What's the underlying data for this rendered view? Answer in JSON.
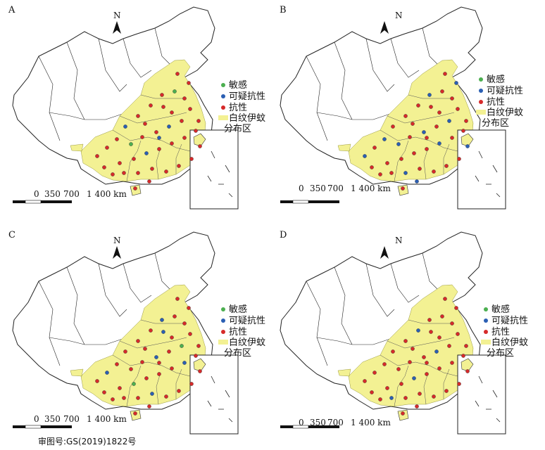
{
  "panels": [
    {
      "label": "A",
      "legend": [
        "敏感",
        "可疑抗性",
        "抗性",
        "白纹伊蚊",
        "分布区"
      ],
      "scale_ticks": [
        "0",
        "350",
        "700",
        "1 400 km"
      ],
      "north": "N",
      "site_pattern": [
        0,
        2,
        2,
        1,
        2,
        2,
        2,
        0,
        2,
        2,
        2,
        1,
        2,
        2,
        2,
        2,
        2,
        2,
        1,
        2,
        2,
        2,
        2,
        2,
        2,
        2,
        2,
        2,
        2,
        2,
        2,
        2,
        1,
        2,
        2,
        2,
        2,
        2,
        2,
        2
      ]
    },
    {
      "label": "B",
      "legend": [
        "敏感",
        "可疑抗性",
        "抗性",
        "白纹伊蚊",
        "分布区"
      ],
      "scale_ticks": [
        "0",
        "350",
        "700",
        "1 400 km"
      ],
      "north": "N",
      "site_pattern": [
        1,
        2,
        1,
        2,
        1,
        2,
        2,
        2,
        1,
        2,
        2,
        2,
        1,
        2,
        1,
        2,
        2,
        2,
        2,
        2,
        1,
        2,
        2,
        1,
        2,
        2,
        2,
        2,
        1,
        2,
        2,
        1,
        2,
        2,
        2,
        2,
        1,
        2,
        2,
        2
      ]
    },
    {
      "label": "C",
      "legend": [
        "敏感",
        "可疑抗性",
        "抗性",
        "白纹伊蚊",
        "分布区"
      ],
      "scale_ticks": [
        "0",
        "350",
        "700",
        "1 400 km"
      ],
      "north": "N",
      "site_pattern": [
        2,
        2,
        1,
        2,
        0,
        2,
        2,
        2,
        1,
        2,
        2,
        2,
        2,
        1,
        2,
        2,
        2,
        0,
        2,
        2,
        2,
        1,
        2,
        2,
        2,
        2,
        2,
        1,
        2,
        2,
        2,
        2,
        2,
        2,
        2,
        1,
        2,
        2,
        2,
        2
      ]
    },
    {
      "label": "D",
      "legend": [
        "敏感",
        "可疑抗性",
        "抗性",
        "白纹伊蚊",
        "分布区"
      ],
      "scale_ticks": [
        "0",
        "350",
        "700",
        "1 400 km"
      ],
      "north": "N",
      "site_pattern": [
        2,
        2,
        2,
        1,
        2,
        2,
        2,
        2,
        2,
        1,
        2,
        2,
        2,
        2,
        2,
        2,
        2,
        2,
        1,
        2,
        2,
        2,
        2,
        2,
        2,
        2,
        2,
        2,
        2,
        1,
        2,
        2,
        2,
        2,
        2,
        2,
        2,
        2,
        2,
        2
      ]
    }
  ],
  "approval_number": "审图号:GS(2019)1822号",
  "colors": {
    "sensitive": "#4caf50",
    "suspected_resistant": "#2b5fb3",
    "resistant": "#d62a2a",
    "distribution": "#f3f193",
    "outline": "#333333"
  }
}
